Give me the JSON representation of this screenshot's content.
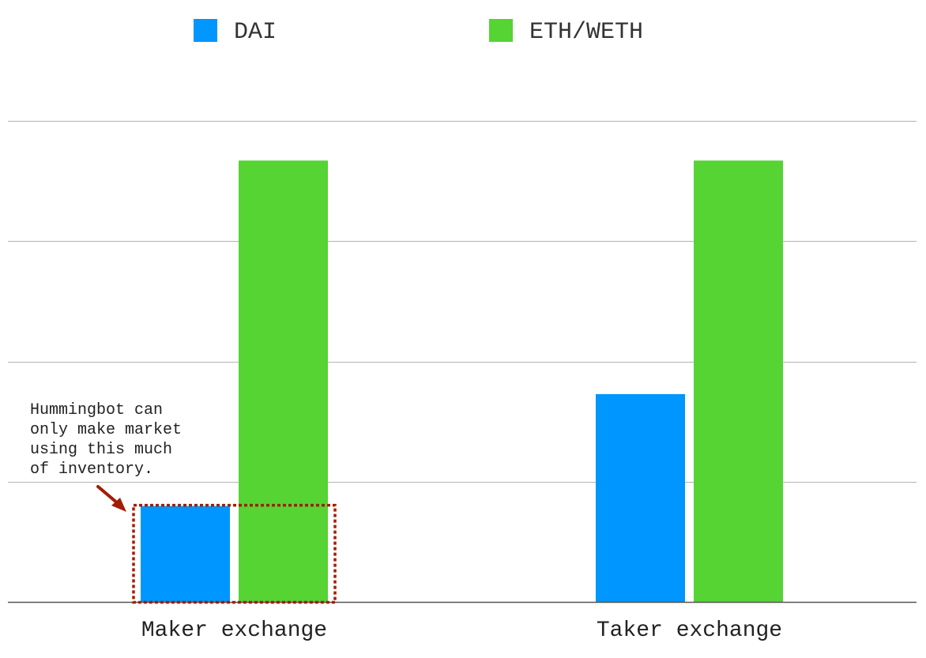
{
  "chart_data": {
    "type": "bar",
    "categories": [
      "Maker exchange",
      "Taker exchange"
    ],
    "series": [
      {
        "name": "DAI",
        "color": "#0096ff",
        "values": [
          0.8,
          1.73
        ]
      },
      {
        "name": "ETH/WETH",
        "color": "#55d433",
        "values": [
          3.67,
          3.67
        ]
      }
    ],
    "ylim": [
      0,
      4
    ],
    "grid": true,
    "legend": "top",
    "title": "",
    "xlabel": "",
    "ylabel": "",
    "annotation": {
      "lines": [
        "Hummingbot can",
        "only make market",
        "using this much",
        "of inventory."
      ],
      "highlight_category": "Maker exchange",
      "highlight_value": 0.8,
      "color": "#a31d00"
    }
  }
}
